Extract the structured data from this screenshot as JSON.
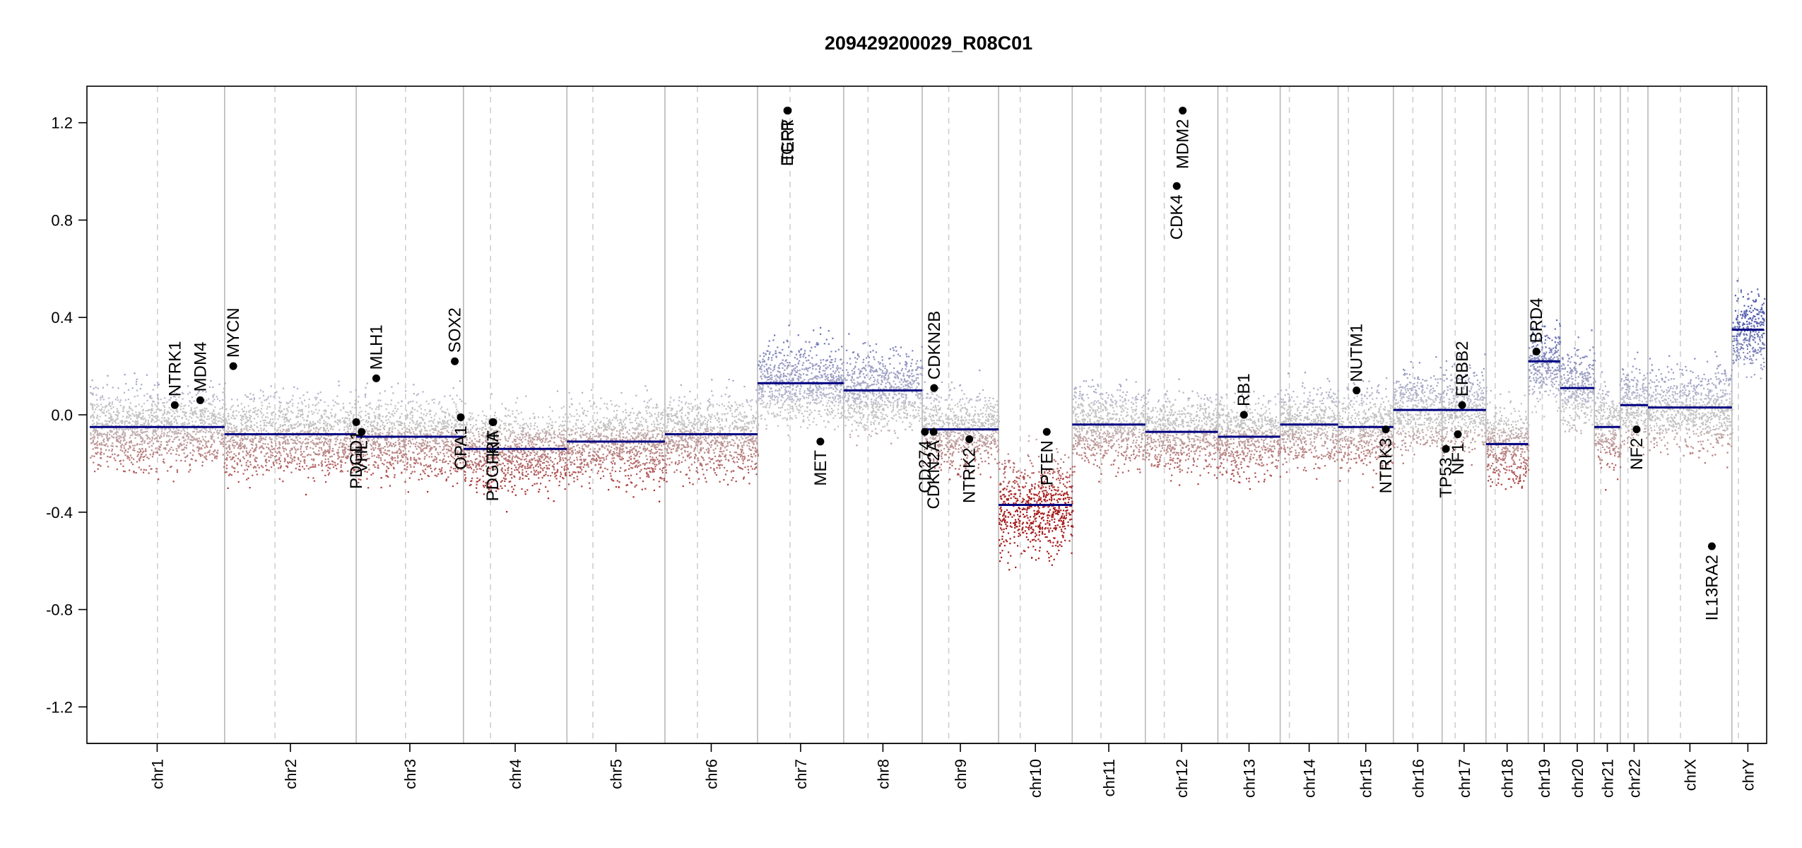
{
  "chart_data": {
    "type": "scatter",
    "title": "209429200029_R08C01",
    "xlabel": "",
    "ylabel": "",
    "ylim": [
      -1.35,
      1.35
    ],
    "y_ticks": [
      -1.2,
      -0.8,
      -0.4,
      0.0,
      0.4,
      0.8,
      1.2
    ],
    "y_tick_labels": [
      "-1.2",
      "-0.8",
      "-0.4",
      "0.0",
      "0.4",
      "0.8",
      "1.2"
    ],
    "grid": false,
    "colors": {
      "gain": "#5b66b0",
      "neutral": "#bcbcbc",
      "loss": "#a01c1c",
      "segment": "#000080",
      "gene": "#000000",
      "divider": "#b8b8b8"
    },
    "chromosomes": [
      {
        "name": "chr1",
        "length": 249,
        "centromere": 125
      },
      {
        "name": "chr2",
        "length": 243,
        "centromere": 93
      },
      {
        "name": "chr3",
        "length": 198,
        "centromere": 91
      },
      {
        "name": "chr4",
        "length": 191,
        "centromere": 50
      },
      {
        "name": "chr5",
        "length": 181,
        "centromere": 48
      },
      {
        "name": "chr6",
        "length": 171,
        "centromere": 60
      },
      {
        "name": "chr7",
        "length": 159,
        "centromere": 60
      },
      {
        "name": "chr8",
        "length": 145,
        "centromere": 45
      },
      {
        "name": "chr9",
        "length": 141,
        "centromere": 49
      },
      {
        "name": "chr10",
        "length": 136,
        "centromere": 40
      },
      {
        "name": "chr11",
        "length": 135,
        "centromere": 53
      },
      {
        "name": "chr12",
        "length": 134,
        "centromere": 35
      },
      {
        "name": "chr13",
        "length": 115,
        "centromere": 17
      },
      {
        "name": "chr14",
        "length": 107,
        "centromere": 17
      },
      {
        "name": "chr15",
        "length": 102,
        "centromere": 19
      },
      {
        "name": "chr16",
        "length": 90,
        "centromere": 36
      },
      {
        "name": "chr17",
        "length": 81,
        "centromere": 24
      },
      {
        "name": "chr18",
        "length": 78,
        "centromere": 17
      },
      {
        "name": "chr19",
        "length": 59,
        "centromere": 26
      },
      {
        "name": "chr20",
        "length": 63,
        "centromere": 28
      },
      {
        "name": "chr21",
        "length": 48,
        "centromere": 12
      },
      {
        "name": "chr22",
        "length": 51,
        "centromere": 14
      },
      {
        "name": "chrX",
        "length": 155,
        "centromere": 60
      },
      {
        "name": "chrY",
        "length": 59,
        "centromere": 12
      }
    ],
    "segments": [
      {
        "chr": "chr1",
        "start": 0,
        "end": 249,
        "value": -0.05
      },
      {
        "chr": "chr2",
        "start": 0,
        "end": 243,
        "value": -0.08
      },
      {
        "chr": "chr3",
        "start": 0,
        "end": 198,
        "value": -0.09
      },
      {
        "chr": "chr4",
        "start": 0,
        "end": 191,
        "value": -0.14
      },
      {
        "chr": "chr5",
        "start": 0,
        "end": 181,
        "value": -0.11
      },
      {
        "chr": "chr6",
        "start": 0,
        "end": 171,
        "value": -0.08
      },
      {
        "chr": "chr7",
        "start": 0,
        "end": 159,
        "value": 0.13
      },
      {
        "chr": "chr8",
        "start": 0,
        "end": 145,
        "value": 0.1
      },
      {
        "chr": "chr9",
        "start": 0,
        "end": 141,
        "value": -0.06
      },
      {
        "chr": "chr10",
        "start": 0,
        "end": 136,
        "value": -0.37
      },
      {
        "chr": "chr11",
        "start": 0,
        "end": 135,
        "value": -0.04
      },
      {
        "chr": "chr12",
        "start": 0,
        "end": 134,
        "value": -0.07
      },
      {
        "chr": "chr13",
        "start": 0,
        "end": 115,
        "value": -0.09
      },
      {
        "chr": "chr14",
        "start": 0,
        "end": 107,
        "value": -0.04
      },
      {
        "chr": "chr15",
        "start": 0,
        "end": 102,
        "value": -0.05
      },
      {
        "chr": "chr16",
        "start": 0,
        "end": 90,
        "value": 0.02
      },
      {
        "chr": "chr17",
        "start": 0,
        "end": 81,
        "value": 0.02
      },
      {
        "chr": "chr18",
        "start": 0,
        "end": 78,
        "value": -0.12
      },
      {
        "chr": "chr19",
        "start": 0,
        "end": 59,
        "value": 0.22
      },
      {
        "chr": "chr20",
        "start": 0,
        "end": 63,
        "value": 0.11
      },
      {
        "chr": "chr21",
        "start": 0,
        "end": 48,
        "value": -0.05
      },
      {
        "chr": "chr22",
        "start": 0,
        "end": 51,
        "value": 0.04
      },
      {
        "chr": "chrX",
        "start": 0,
        "end": 155,
        "value": 0.03
      },
      {
        "chr": "chrY",
        "start": 0,
        "end": 59,
        "value": 0.35
      }
    ],
    "genes": [
      {
        "name": "NTRK1",
        "chr": "chr1",
        "pos": 157,
        "value": 0.04,
        "label_side": "above"
      },
      {
        "name": "MDM4",
        "chr": "chr1",
        "pos": 204,
        "value": 0.06,
        "label_side": "above"
      },
      {
        "name": "MYCN",
        "chr": "chr2",
        "pos": 16,
        "value": 0.2,
        "label_side": "above"
      },
      {
        "name": "PDGD1",
        "chr": "chr3",
        "pos": 0,
        "value": -0.03,
        "label_side": "below"
      },
      {
        "name": "VHL",
        "chr": "chr3",
        "pos": 10,
        "value": -0.07,
        "label_side": "below"
      },
      {
        "name": "MLH1",
        "chr": "chr3",
        "pos": 37,
        "value": 0.15,
        "label_side": "above"
      },
      {
        "name": "SOX2",
        "chr": "chr3",
        "pos": 182,
        "value": 0.22,
        "label_side": "above"
      },
      {
        "name": "OPA1",
        "chr": "chr3",
        "pos": 193,
        "value": -0.01,
        "label_side": "below"
      },
      {
        "name": "KIT",
        "chr": "chr4",
        "pos": 55,
        "value": -0.03,
        "label_side": "below"
      },
      {
        "name": "PDGFRA",
        "chr": "chr4",
        "pos": 54,
        "value": -0.03,
        "label_side": "below"
      },
      {
        "name": "EGFR",
        "chr": "chr7",
        "pos": 55,
        "value": 1.25,
        "label_side": "below"
      },
      {
        "name": "TERT",
        "chr": "chr7",
        "pos": 56,
        "value": 1.25,
        "label_side": "below"
      },
      {
        "name": "MET",
        "chr": "chr7",
        "pos": 116,
        "value": -0.11,
        "label_side": "below"
      },
      {
        "name": "CD274",
        "chr": "chr9",
        "pos": 5,
        "value": -0.07,
        "label_side": "below"
      },
      {
        "name": "CDKN2A",
        "chr": "chr9",
        "pos": 21,
        "value": -0.07,
        "label_side": "below"
      },
      {
        "name": "CDKN2B",
        "chr": "chr9",
        "pos": 22,
        "value": 0.11,
        "label_side": "above"
      },
      {
        "name": "NTRK2",
        "chr": "chr9",
        "pos": 87,
        "value": -0.1,
        "label_side": "below"
      },
      {
        "name": "PTEN",
        "chr": "chr10",
        "pos": 89,
        "value": -0.07,
        "label_side": "below"
      },
      {
        "name": "CDK4",
        "chr": "chr12",
        "pos": 58,
        "value": 0.94,
        "label_side": "below"
      },
      {
        "name": "MDM2",
        "chr": "chr12",
        "pos": 69,
        "value": 1.25,
        "label_side": "below"
      },
      {
        "name": "RB1",
        "chr": "chr13",
        "pos": 48,
        "value": 0.0,
        "label_side": "above"
      },
      {
        "name": "NUTM1",
        "chr": "chr15",
        "pos": 34,
        "value": 0.1,
        "label_side": "above"
      },
      {
        "name": "NTRK3",
        "chr": "chr15",
        "pos": 88,
        "value": -0.06,
        "label_side": "below"
      },
      {
        "name": "TP53",
        "chr": "chr17",
        "pos": 7,
        "value": -0.14,
        "label_side": "below"
      },
      {
        "name": "NF1",
        "chr": "chr17",
        "pos": 29,
        "value": -0.08,
        "label_side": "below"
      },
      {
        "name": "ERBB2",
        "chr": "chr17",
        "pos": 37,
        "value": 0.04,
        "label_side": "above"
      },
      {
        "name": "BRD4",
        "chr": "chr19",
        "pos": 15,
        "value": 0.26,
        "label_side": "above"
      },
      {
        "name": "NF2",
        "chr": "chr22",
        "pos": 30,
        "value": -0.06,
        "label_side": "below"
      },
      {
        "name": "IL13RA2",
        "chr": "chrX",
        "pos": 118,
        "value": -0.54,
        "label_side": "below"
      }
    ],
    "points_note_value_range": [
      -1.25,
      1.25
    ]
  }
}
